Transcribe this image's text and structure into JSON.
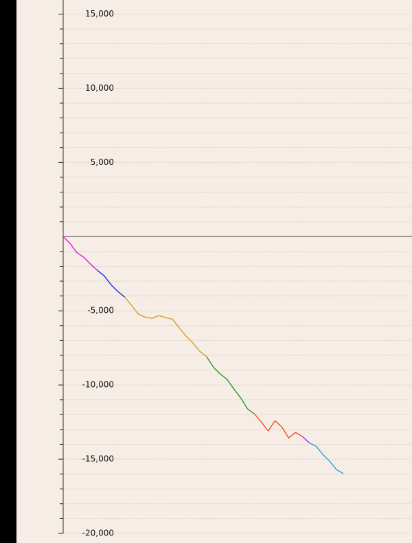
{
  "chart_data": {
    "type": "line",
    "ylim": [
      -20650,
      15950
    ],
    "yticks": [
      {
        "value": 15000,
        "label": "15,000"
      },
      {
        "value": 10000,
        "label": "10,000"
      },
      {
        "value": 5000,
        "label": "5,000"
      },
      {
        "value": -5000,
        "label": "-5,000"
      },
      {
        "value": -10000,
        "label": "-10,000"
      },
      {
        "value": -15000,
        "label": "-15,000"
      },
      {
        "value": -20000,
        "label": "-20,000"
      }
    ],
    "minor_yticks": [
      14000,
      13000,
      12000,
      11000,
      9000,
      8000,
      7000,
      6000,
      4000,
      3000,
      2000,
      1000,
      -1000,
      -2000,
      -3000,
      -4000,
      -6000,
      -7000,
      -8000,
      -9000,
      -11000,
      -12000,
      -13000,
      -14000,
      -16000,
      -17000,
      -18000,
      -19000
    ],
    "grid": true,
    "zero_line": true,
    "series": [
      {
        "color": "#e21ed8",
        "values": [
          0,
          -460,
          -1065,
          -1390,
          -1850,
          -2270,
          null,
          null,
          null,
          null,
          null,
          null,
          null,
          null,
          null,
          null,
          null,
          null,
          null,
          null,
          null,
          null,
          null,
          null,
          null,
          null,
          null,
          null,
          null,
          null,
          null,
          null,
          null,
          null,
          null,
          null,
          null,
          null,
          null,
          null,
          null,
          null
        ]
      },
      {
        "color": "#1c2ee0",
        "values": [
          null,
          null,
          null,
          null,
          null,
          -2270,
          -2640,
          -3240,
          -3700,
          -4075,
          null,
          null,
          null,
          null,
          null,
          null,
          null,
          null,
          null,
          null,
          null,
          null,
          null,
          null,
          null,
          null,
          null,
          null,
          null,
          null,
          null,
          null,
          null,
          null,
          null,
          null,
          null,
          null,
          null,
          null,
          null,
          null
        ]
      },
      {
        "color": "#d4a020",
        "values": [
          null,
          null,
          null,
          null,
          null,
          null,
          null,
          null,
          null,
          -4075,
          -4630,
          -5230,
          -5420,
          -5510,
          -5325,
          -5460,
          -5560,
          -6160,
          -6710,
          -7180,
          -7730,
          -8100,
          null,
          null,
          null,
          null,
          null,
          null,
          null,
          null,
          null,
          null,
          null,
          null,
          null,
          null,
          null,
          null,
          null,
          null,
          null,
          null
        ]
      },
      {
        "color": "#289a28",
        "values": [
          null,
          null,
          null,
          null,
          null,
          null,
          null,
          null,
          null,
          null,
          null,
          null,
          null,
          null,
          null,
          null,
          null,
          null,
          null,
          null,
          null,
          -8100,
          -8800,
          -9260,
          -9630,
          -10280,
          -10880,
          -11620,
          -11950,
          null,
          null,
          null,
          null,
          null,
          null,
          null,
          null,
          null,
          null,
          null,
          null,
          null
        ]
      },
      {
        "color": "#f05020",
        "values": [
          null,
          null,
          null,
          null,
          null,
          null,
          null,
          null,
          null,
          null,
          null,
          null,
          null,
          null,
          null,
          null,
          null,
          null,
          null,
          null,
          null,
          null,
          null,
          null,
          null,
          null,
          null,
          null,
          -11950,
          -12500,
          -13100,
          -12410,
          -12825,
          -13570,
          -13195,
          -13470,
          null,
          null,
          null,
          null,
          null,
          null
        ]
      },
      {
        "color": "#9a28d8",
        "values": [
          null,
          null,
          null,
          null,
          null,
          null,
          null,
          null,
          null,
          null,
          null,
          null,
          null,
          null,
          null,
          null,
          null,
          null,
          null,
          null,
          null,
          null,
          null,
          null,
          null,
          null,
          null,
          null,
          null,
          null,
          null,
          null,
          null,
          null,
          null,
          -13470,
          -13890,
          null,
          null,
          null,
          null,
          null
        ]
      },
      {
        "color": "#2aa0d8",
        "values": [
          null,
          null,
          null,
          null,
          null,
          null,
          null,
          null,
          null,
          null,
          null,
          null,
          null,
          null,
          null,
          null,
          null,
          null,
          null,
          null,
          null,
          null,
          null,
          null,
          null,
          null,
          null,
          null,
          null,
          null,
          null,
          null,
          null,
          null,
          null,
          null,
          -13890,
          -14120,
          -14680,
          -15140,
          -15700,
          -15970
        ]
      }
    ]
  }
}
